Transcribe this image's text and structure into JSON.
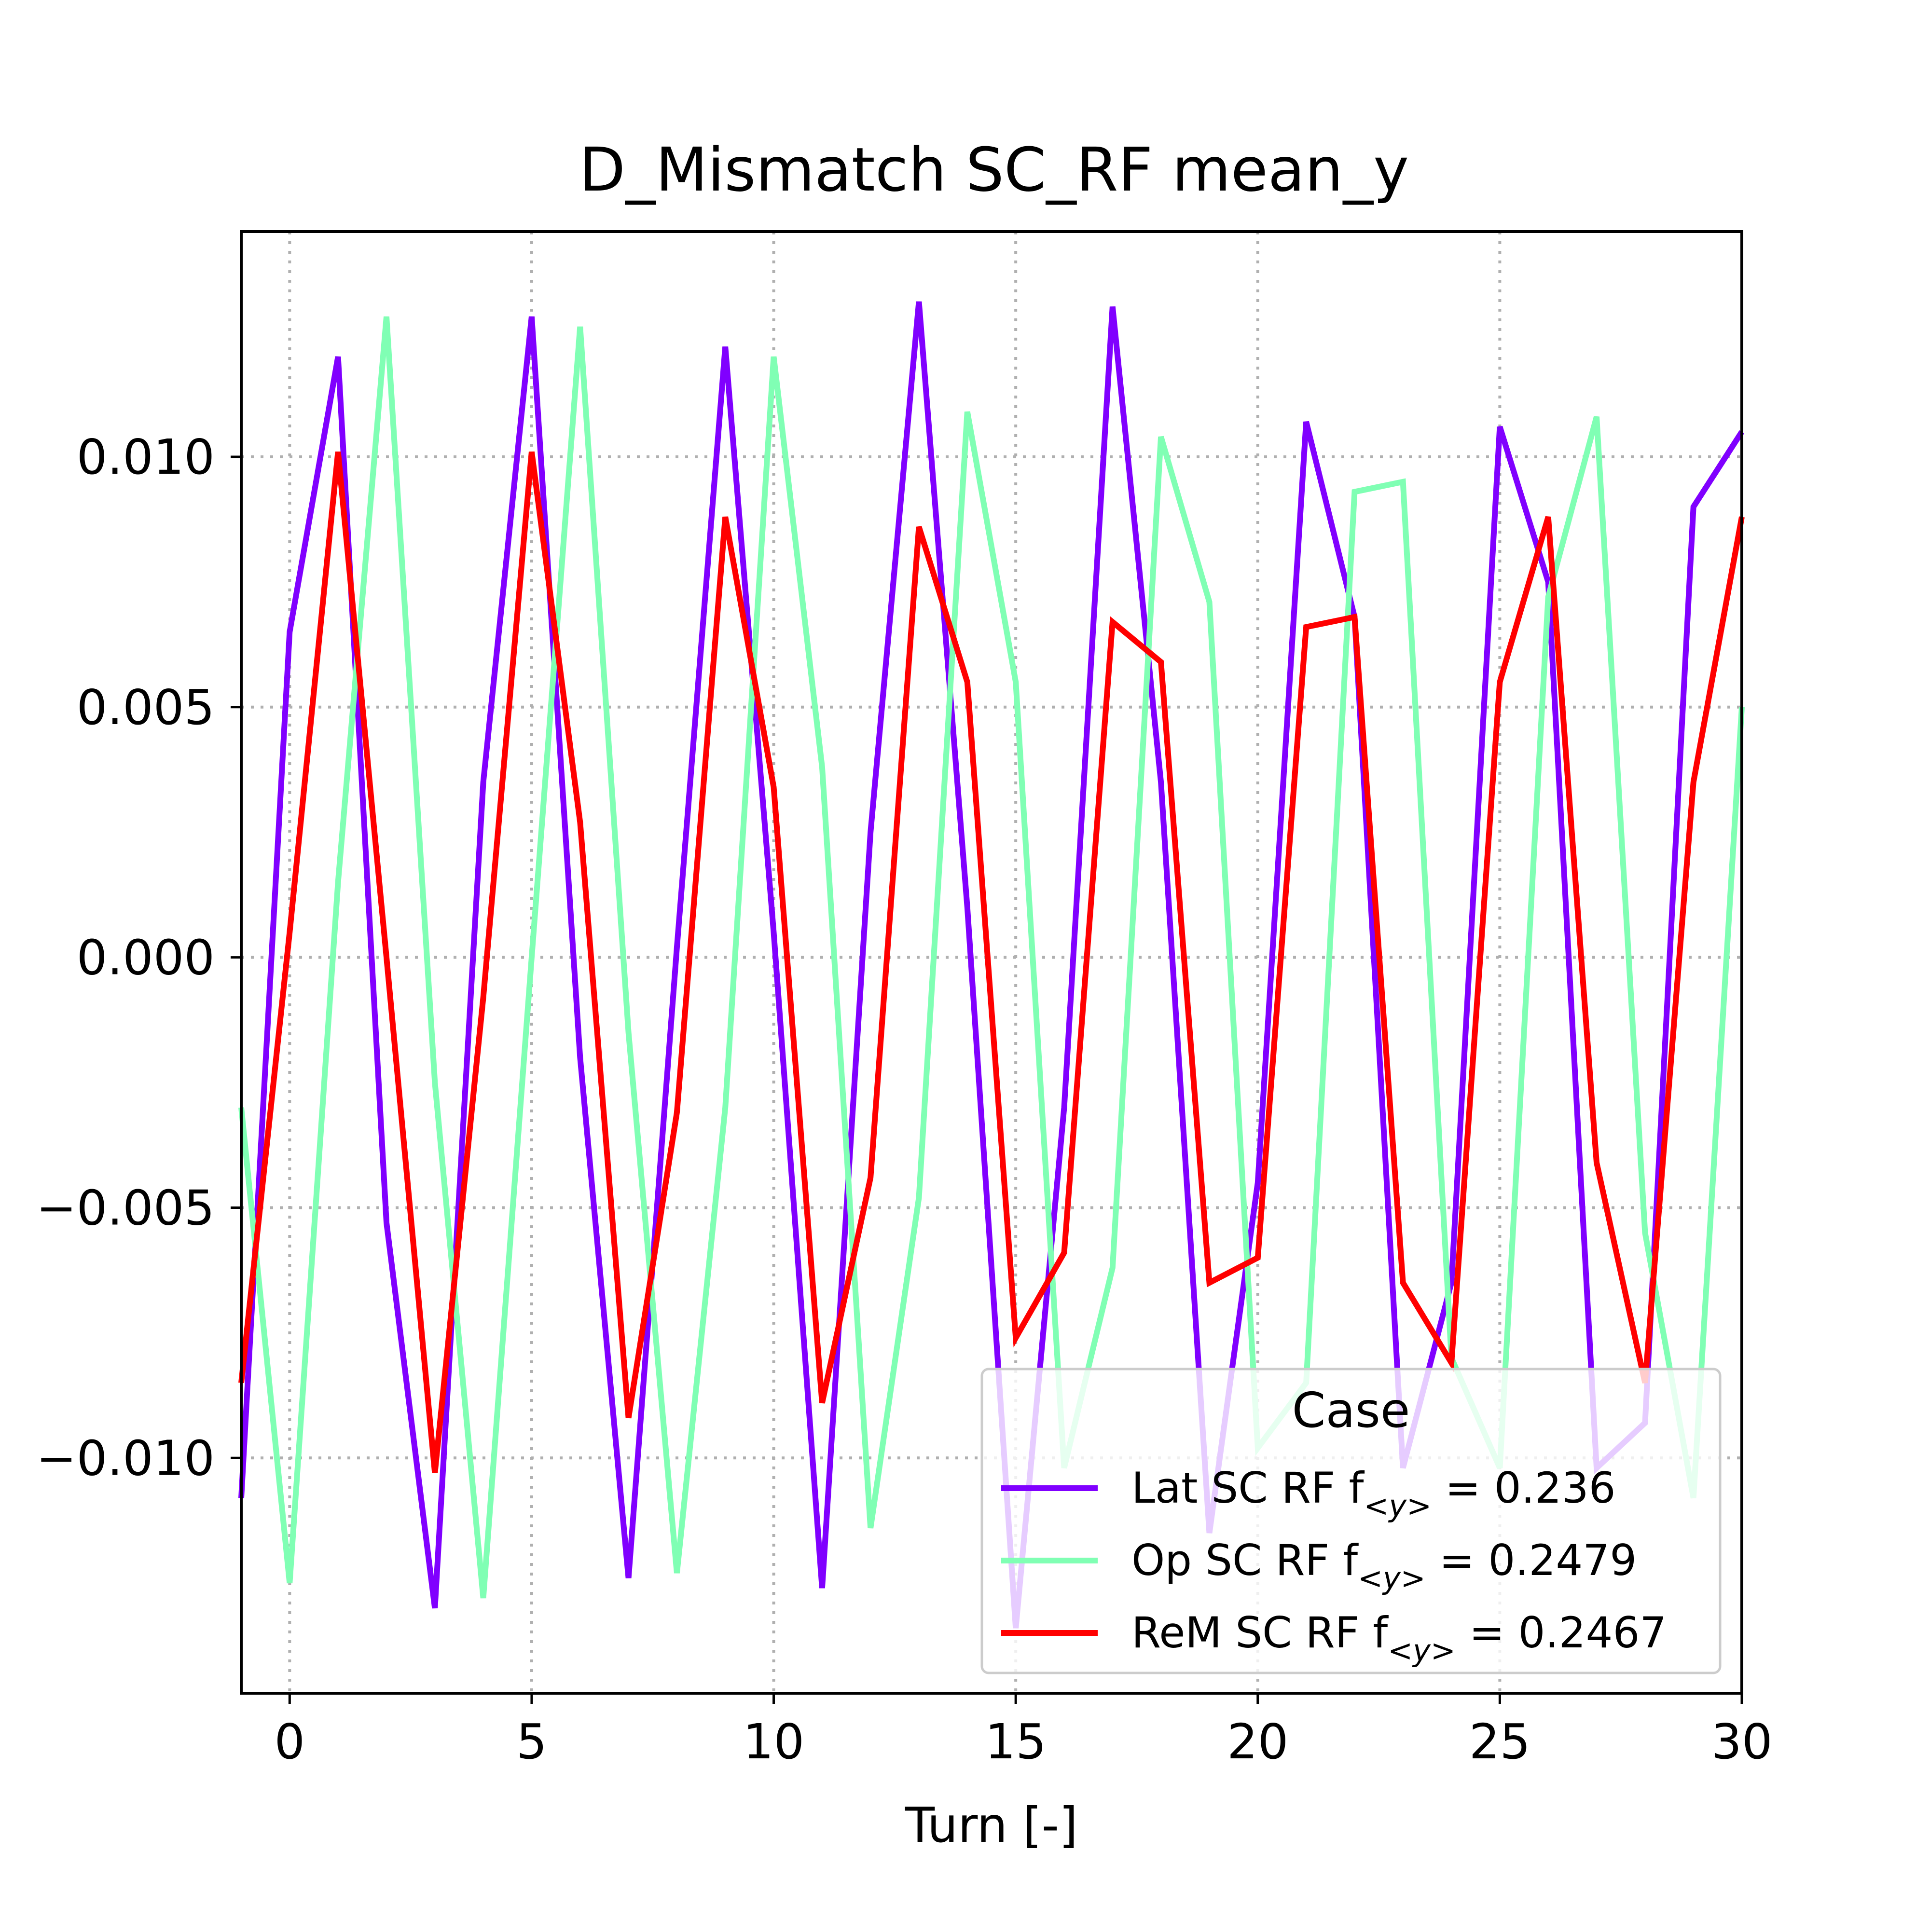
{
  "chart_data": {
    "type": "line",
    "title": "D_Mismatch SC_RF mean_y",
    "xlabel": "Turn [-]",
    "ylabel": "",
    "xlim": [
      -1,
      30
    ],
    "ylim": [
      -0.0147,
      0.0145
    ],
    "xticks": [
      0,
      5,
      10,
      15,
      20,
      25,
      30
    ],
    "xtick_labels": [
      "0",
      "5",
      "10",
      "15",
      "20",
      "25",
      "30"
    ],
    "yticks": [
      -0.01,
      -0.005,
      0.0,
      0.005,
      0.01
    ],
    "ytick_labels": [
      "−0.010",
      "−0.005",
      "0.000",
      "0.005",
      "0.010"
    ],
    "grid": true,
    "legend": {
      "title": "Case",
      "placement": "lower-right"
    },
    "series": [
      {
        "name": "Lat SC RF",
        "freq_label": "0.236",
        "color": "#8000ff",
        "x": [
          -1,
          0,
          1,
          2,
          3,
          4,
          5,
          6,
          7,
          8,
          9,
          10,
          11,
          12,
          13,
          14,
          15,
          16,
          17,
          18,
          19,
          20,
          21,
          22,
          23,
          24,
          25,
          26,
          27,
          28,
          29,
          30
        ],
        "y": [
          -0.0108,
          0.0065,
          0.012,
          -0.0053,
          -0.013,
          0.0035,
          0.0128,
          -0.002,
          -0.0124,
          0.0002,
          0.0122,
          0.0005,
          -0.0126,
          0.0025,
          0.0131,
          0.001,
          -0.0134,
          -0.003,
          0.013,
          0.0035,
          -0.0115,
          -0.0045,
          0.0107,
          0.0068,
          -0.0102,
          -0.0065,
          0.0106,
          0.0075,
          -0.0102,
          -0.0093,
          0.009,
          0.0105
        ]
      },
      {
        "name": "Op SC RF",
        "freq_label": "0.2479",
        "color": "#80ffb4",
        "x": [
          -1,
          0,
          1,
          2,
          3,
          4,
          5,
          6,
          7,
          8,
          9,
          10,
          11,
          12,
          13,
          14,
          15,
          16,
          17,
          18,
          19,
          20,
          21,
          22,
          23,
          24,
          25,
          26,
          27,
          28,
          29,
          30
        ],
        "y": [
          -0.003,
          -0.0125,
          0.0015,
          0.0128,
          -0.0025,
          -0.0128,
          0.0,
          0.0126,
          -0.0015,
          -0.0123,
          -0.003,
          0.012,
          0.0038,
          -0.0114,
          -0.0048,
          0.0109,
          0.0055,
          -0.0102,
          -0.0062,
          0.0104,
          0.0071,
          -0.0098,
          -0.0085,
          0.0093,
          0.0095,
          -0.008,
          -0.0102,
          0.0072,
          0.0108,
          -0.0055,
          -0.0108,
          0.005
        ]
      },
      {
        "name": "ReM SC RF",
        "freq_label": "0.2467",
        "color": "#ff0000",
        "x": [
          -1,
          0,
          1,
          2,
          3,
          4,
          5,
          6,
          7,
          8,
          9,
          10,
          11,
          12,
          13,
          14,
          15,
          16,
          17,
          18,
          19,
          20,
          21,
          22,
          23,
          24,
          25,
          26,
          27,
          28,
          29,
          30
        ],
        "y": [
          -0.0085,
          0.0005,
          0.0101,
          0.0,
          -0.0103,
          -0.0008,
          0.0101,
          0.0027,
          -0.0092,
          -0.0031,
          0.0088,
          0.0034,
          -0.0089,
          -0.0044,
          0.0086,
          0.0055,
          -0.0076,
          -0.0059,
          0.0067,
          0.0059,
          -0.0065,
          -0.006,
          0.0066,
          0.0068,
          -0.0065,
          -0.0081,
          0.0055,
          0.0088,
          -0.0041,
          -0.0085,
          0.0035,
          0.0088
        ]
      }
    ]
  }
}
